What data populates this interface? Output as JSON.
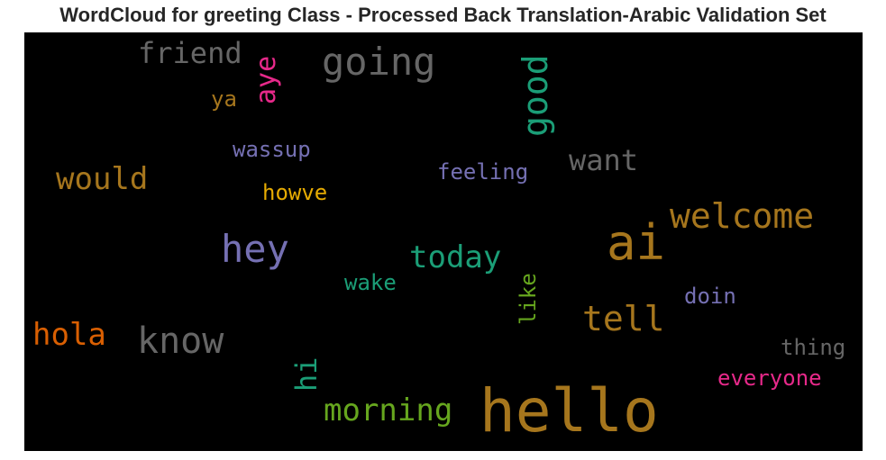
{
  "title": "WordCloud for greeting Class - Processed Back Translation-Arabic Validation Set",
  "cloud": {
    "background": "#000000",
    "words": [
      {
        "text": "hello",
        "color": "#a6761d"
      },
      {
        "text": "ai",
        "color": "#a6761d"
      },
      {
        "text": "welcome",
        "color": "#a6761d"
      },
      {
        "text": "going",
        "color": "#666666"
      },
      {
        "text": "good",
        "color": "#1b9e77"
      },
      {
        "text": "friend",
        "color": "#666666"
      },
      {
        "text": "aye",
        "color": "#e7298a"
      },
      {
        "text": "ya",
        "color": "#a6761d"
      },
      {
        "text": "wassup",
        "color": "#7570b3"
      },
      {
        "text": "feeling",
        "color": "#7570b3"
      },
      {
        "text": "want",
        "color": "#666666"
      },
      {
        "text": "would",
        "color": "#a6761d"
      },
      {
        "text": "howve",
        "color": "#e6ab02"
      },
      {
        "text": "hey",
        "color": "#7570b3"
      },
      {
        "text": "today",
        "color": "#1b9e77"
      },
      {
        "text": "wake",
        "color": "#1b9e77"
      },
      {
        "text": "like",
        "color": "#66a61e"
      },
      {
        "text": "doin",
        "color": "#7570b3"
      },
      {
        "text": "tell",
        "color": "#a6761d"
      },
      {
        "text": "hola",
        "color": "#d95f02"
      },
      {
        "text": "know",
        "color": "#666666"
      },
      {
        "text": "thing",
        "color": "#666666"
      },
      {
        "text": "hi",
        "color": "#1b9e77"
      },
      {
        "text": "everyone",
        "color": "#e7298a"
      },
      {
        "text": "morning",
        "color": "#66a61e"
      }
    ]
  }
}
